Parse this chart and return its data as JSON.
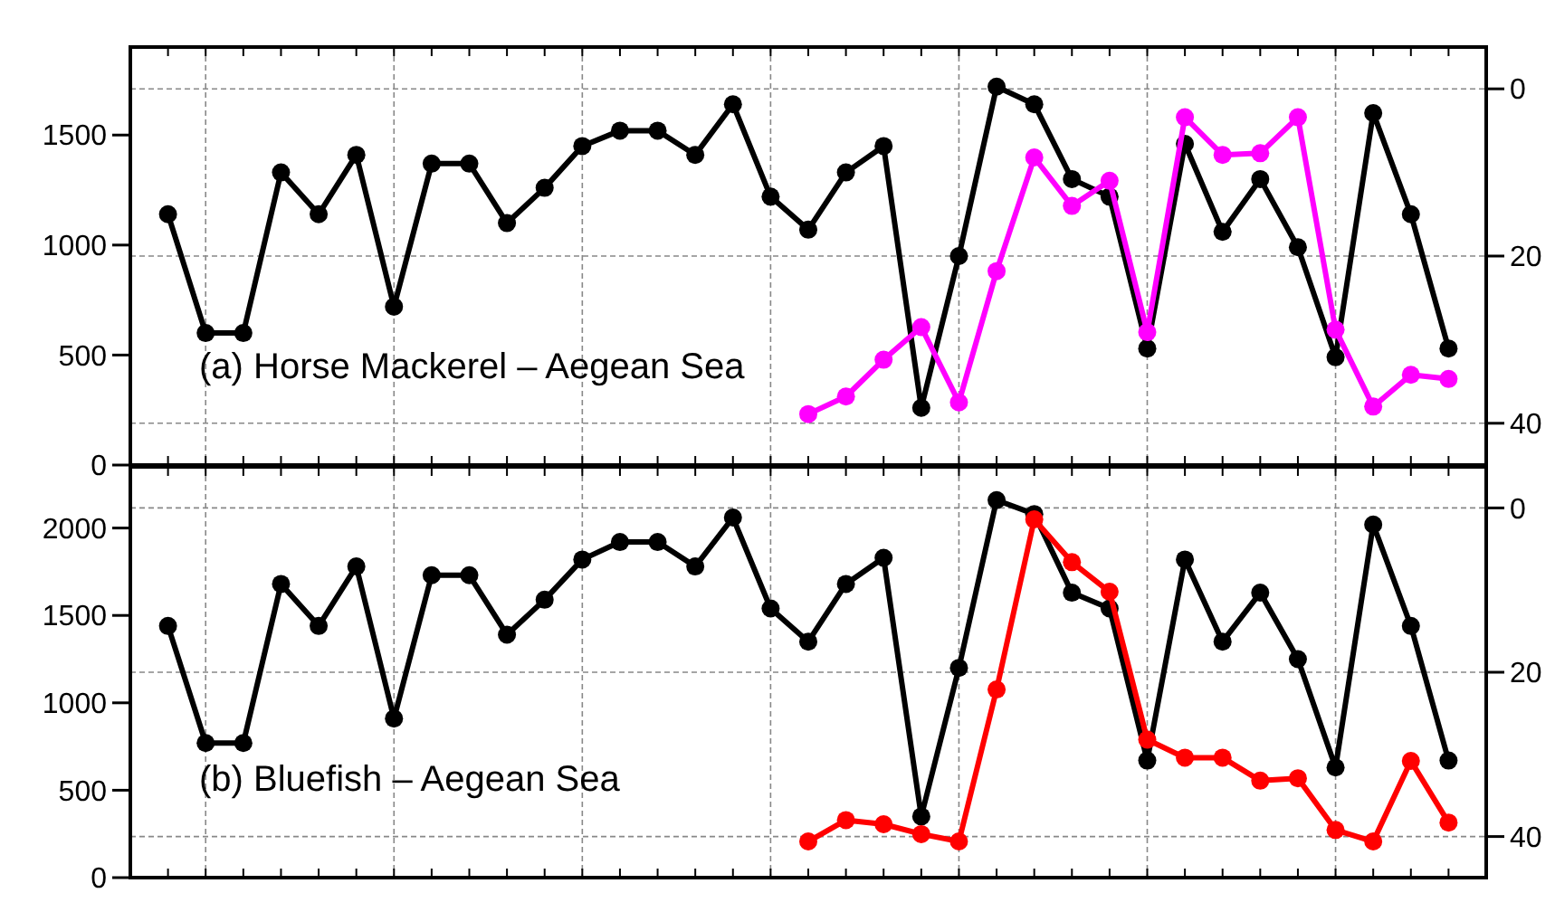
{
  "chart_data": [
    {
      "type": "line",
      "annotations": [
        "(a) Horse Mackerel – Aegean Sea"
      ],
      "categories": [
        null,
        null,
        null,
        null,
        null,
        null,
        null,
        null,
        null,
        null,
        null,
        null,
        null,
        null,
        null,
        null,
        null,
        null,
        null,
        null,
        null,
        null,
        null,
        null,
        null,
        null,
        null,
        null,
        null,
        null,
        null,
        null,
        null,
        null,
        null
      ],
      "series": [
        {
          "color": "#000000",
          "values": [
            1140,
            600,
            600,
            1330,
            1140,
            1410,
            720,
            1370,
            1370,
            1100,
            1260,
            1450,
            1520,
            1520,
            1410,
            1640,
            1220,
            1070,
            1330,
            1450,
            260,
            950,
            1720,
            1640,
            1300,
            1220,
            530,
            1460,
            1060,
            1300,
            990,
            490,
            1600,
            1140,
            530
          ]
        },
        {
          "color": "#ff00ff",
          "axis": "y2",
          "values": [
            null,
            null,
            null,
            null,
            null,
            null,
            null,
            null,
            null,
            null,
            null,
            null,
            null,
            null,
            null,
            null,
            null,
            38.9,
            36.8,
            32.4,
            28.5,
            37.5,
            21.8,
            8.2,
            14,
            11,
            29.1,
            3.4,
            7.9,
            7.7,
            3.4,
            28.8,
            38,
            34.2,
            34.7
          ]
        }
      ],
      "ylim": [
        0,
        1900
      ],
      "yticks": [
        0,
        500,
        1000,
        1500
      ],
      "y2lim": [
        45,
        -5
      ],
      "y2ticks": [
        0,
        20,
        40
      ],
      "grid": true,
      "marker": "circle",
      "line_style": "solid"
    },
    {
      "type": "line",
      "annotations": [
        "(b) Bluefish – Aegean Sea"
      ],
      "categories": [
        null,
        null,
        null,
        null,
        null,
        null,
        null,
        null,
        null,
        null,
        null,
        null,
        null,
        null,
        null,
        null,
        null,
        null,
        null,
        null,
        null,
        null,
        null,
        null,
        null,
        null,
        null,
        null,
        null,
        null,
        null,
        null,
        null,
        null,
        null
      ],
      "series": [
        {
          "color": "#000000",
          "values": [
            1440,
            770,
            770,
            1680,
            1440,
            1780,
            910,
            1730,
            1730,
            1390,
            1590,
            1820,
            1920,
            1920,
            1780,
            2060,
            1540,
            1350,
            1680,
            1830,
            350,
            1200,
            2160,
            2080,
            1630,
            1540,
            670,
            1820,
            1350,
            1630,
            1250,
            630,
            2020,
            1440,
            670
          ]
        },
        {
          "color": "#ff0000",
          "axis": "y2",
          "values": [
            null,
            null,
            null,
            null,
            null,
            null,
            null,
            null,
            null,
            null,
            null,
            null,
            null,
            null,
            null,
            null,
            null,
            40.6,
            38,
            38.5,
            39.7,
            40.6,
            22.1,
            1.4,
            6.6,
            10.2,
            28.2,
            30.4,
            30.4,
            33.2,
            32.9,
            39.2,
            40.6,
            30.8,
            38.3
          ]
        }
      ],
      "ylim": [
        0,
        2350
      ],
      "yticks": [
        0,
        500,
        1000,
        1500,
        2000
      ],
      "y2lim": [
        45,
        -5
      ],
      "y2ticks": [
        0,
        20,
        40
      ],
      "grid": true,
      "marker": "circle",
      "line_style": "solid"
    }
  ]
}
